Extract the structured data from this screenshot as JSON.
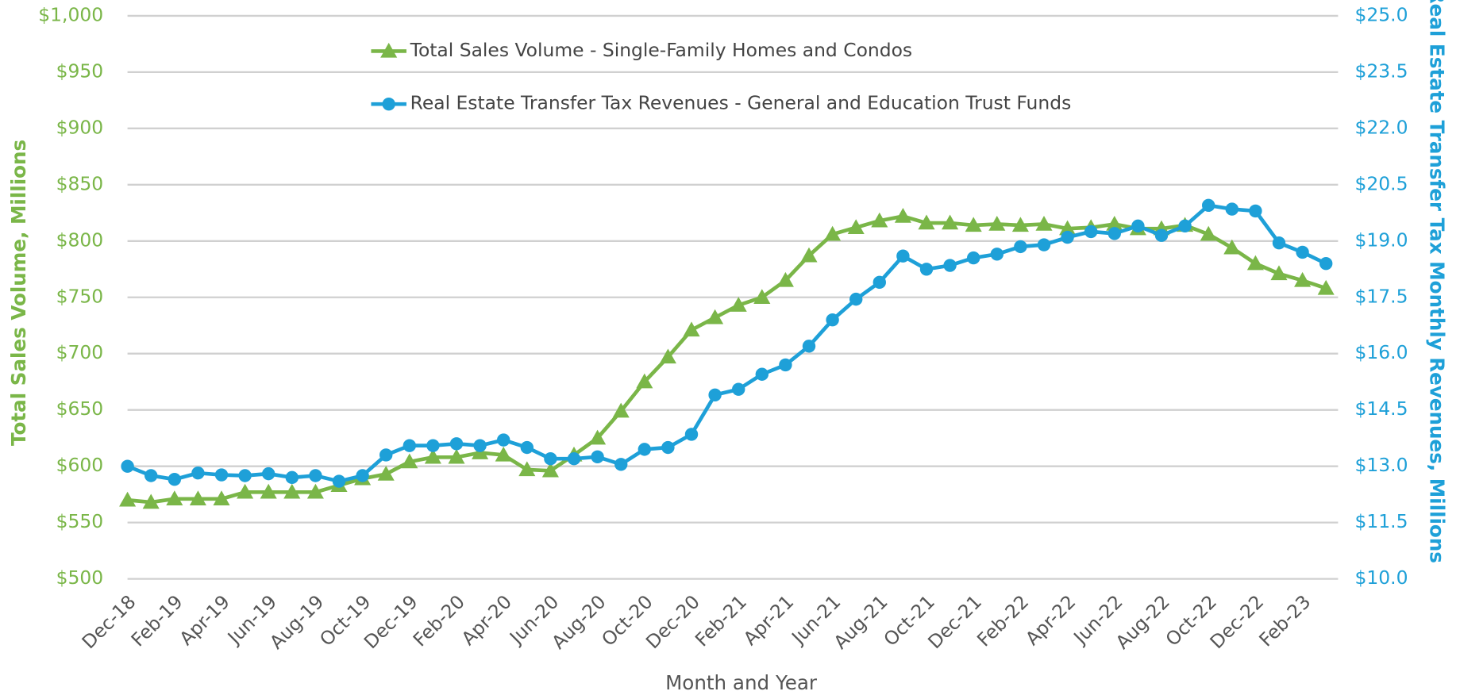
{
  "chart_data": {
    "type": "line",
    "x_label": "Month and Year",
    "y_label": "Total Sales Volume, Millions",
    "y2_label": "Real Estate Transfer Tax Monthly Revenues, Millions",
    "categories": [
      "Dec-18",
      null,
      "Feb-19",
      null,
      "Apr-19",
      null,
      "Jun-19",
      null,
      "Aug-19",
      null,
      "Oct-19",
      null,
      "Dec-19",
      null,
      "Feb-20",
      null,
      "Apr-20",
      null,
      "Jun-20",
      null,
      "Aug-20",
      null,
      "Oct-20",
      null,
      "Dec-20",
      null,
      "Feb-21",
      null,
      "Apr-21",
      null,
      "Jun-21",
      null,
      "Aug-21",
      null,
      "Oct-21",
      null,
      "Dec-21",
      null,
      "Feb-22",
      null,
      "Apr-22",
      null,
      "Jun-22",
      null,
      "Aug-22",
      null,
      "Oct-22",
      null,
      "Dec-22",
      null,
      "Feb-23",
      null
    ],
    "series": [
      {
        "name": "Total Sales Volume - Single-Family Homes and Condos",
        "color": "#7ab648",
        "marker": "triangle",
        "values": [
          570,
          568,
          571,
          571,
          571,
          577,
          577,
          577,
          577,
          583,
          589,
          593,
          604,
          608,
          608,
          612,
          610,
          597,
          596,
          610,
          625,
          649,
          675,
          697,
          721,
          732,
          743,
          750,
          765,
          787,
          806,
          812,
          818,
          822,
          816,
          816,
          814,
          815,
          814,
          815,
          811,
          812,
          815,
          811,
          811,
          814,
          806,
          794,
          780,
          771,
          765,
          758
        ]
      },
      {
        "name": "Real Estate Transfer Tax Revenues - General and Education Trust Funds",
        "color": "#1ea0d8",
        "marker": "circle",
        "axis": "y2",
        "values": [
          13.0,
          12.75,
          12.65,
          12.82,
          12.77,
          12.75,
          12.8,
          12.7,
          12.75,
          12.6,
          12.75,
          13.3,
          13.55,
          13.55,
          13.6,
          13.55,
          13.7,
          13.5,
          13.2,
          13.2,
          13.25,
          13.05,
          13.45,
          13.5,
          13.85,
          14.9,
          15.05,
          15.45,
          15.7,
          16.2,
          16.9,
          17.45,
          17.9,
          18.6,
          18.25,
          18.35,
          18.55,
          18.65,
          18.85,
          18.9,
          19.1,
          19.25,
          19.2,
          19.4,
          19.15,
          19.4,
          19.95,
          19.85,
          19.8,
          18.95,
          18.7,
          18.4
        ]
      }
    ],
    "ylim": [
      500,
      1000
    ],
    "yticks": [
      {
        "value": 500,
        "label": "$500"
      },
      {
        "value": 550,
        "label": "$550"
      },
      {
        "value": 600,
        "label": "$600"
      },
      {
        "value": 650,
        "label": "$650"
      },
      {
        "value": 700,
        "label": "$700"
      },
      {
        "value": 750,
        "label": "$750"
      },
      {
        "value": 800,
        "label": "$800"
      },
      {
        "value": 850,
        "label": "$850"
      },
      {
        "value": 900,
        "label": "$900"
      },
      {
        "value": 950,
        "label": "$950"
      },
      {
        "value": 1000,
        "label": "$1,000"
      }
    ],
    "y2lim": [
      10,
      25
    ],
    "y2ticks": [
      {
        "value": 10,
        "label": "$10.0"
      },
      {
        "value": 11.5,
        "label": "$11.5"
      },
      {
        "value": 13,
        "label": "$13.0"
      },
      {
        "value": 14.5,
        "label": "$14.5"
      },
      {
        "value": 16,
        "label": "$16.0"
      },
      {
        "value": 17.5,
        "label": "$17.5"
      },
      {
        "value": 19,
        "label": "$19.0"
      },
      {
        "value": 20.5,
        "label": "$20.5"
      },
      {
        "value": 22,
        "label": "$22.0"
      },
      {
        "value": 23.5,
        "label": "$23.5"
      },
      {
        "value": 25,
        "label": "$25.0"
      }
    ],
    "grid": true,
    "legend": "top"
  }
}
